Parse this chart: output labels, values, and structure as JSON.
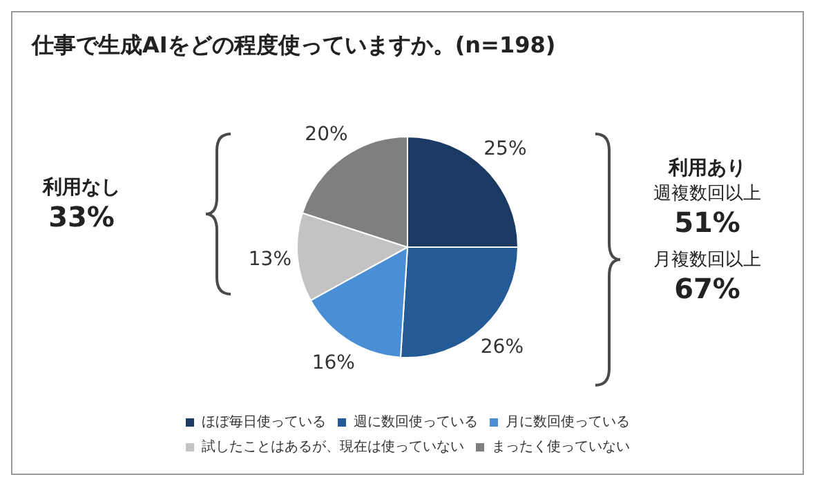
{
  "chart_data": {
    "type": "pie",
    "title": "仕事で生成AIをどの程度使っていますか。(n=198)",
    "categories": [
      "ほぼ毎日使っている",
      "週に数回使っている",
      "月に数回使っている",
      "試したことはあるが、現在は使っていない",
      "まったく使っていない"
    ],
    "values": [
      25,
      26,
      16,
      13,
      20
    ],
    "value_labels": [
      "25%",
      "26%",
      "16%",
      "13%",
      "20%"
    ],
    "colors": [
      "#1b3a63",
      "#245a96",
      "#4a8fd6",
      "#c3c3c3",
      "#7f7f7f"
    ],
    "legend": "bottom",
    "annotations": [
      "利用なし",
      "33%",
      "利用あり",
      "週複数回以上",
      "51%",
      "月複数回以上",
      "67%"
    ]
  }
}
